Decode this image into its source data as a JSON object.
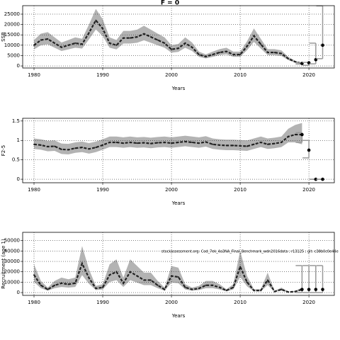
{
  "chart_data": [
    {
      "type": "line",
      "title": "F = 0",
      "xlabel": "Years",
      "ylabel": "SSB",
      "x": [
        1980,
        1981,
        1982,
        1983,
        1984,
        1985,
        1986,
        1987,
        1988,
        1989,
        1990,
        1991,
        1992,
        1993,
        1994,
        1995,
        1996,
        1997,
        1998,
        1999,
        2000,
        2001,
        2002,
        2003,
        2004,
        2005,
        2006,
        2007,
        2008,
        2009,
        2010,
        2011,
        2012,
        2013,
        2014,
        2015,
        2016,
        2017,
        2018,
        2019
      ],
      "values": [
        10000,
        12500,
        13000,
        11000,
        9000,
        10000,
        11000,
        10500,
        16000,
        22000,
        18000,
        11000,
        10000,
        13500,
        13500,
        14000,
        15500,
        14000,
        12500,
        11000,
        8000,
        8500,
        11000,
        9000,
        5500,
        4500,
        5500,
        6500,
        7000,
        5500,
        5500,
        9500,
        14500,
        10500,
        6500,
        6500,
        6000,
        3500,
        2000,
        1200
      ],
      "lower": [
        8000,
        10000,
        10400,
        8800,
        7200,
        8000,
        8800,
        8400,
        12800,
        17600,
        14400,
        8800,
        8000,
        10800,
        10800,
        11200,
        12400,
        11200,
        10000,
        8800,
        6400,
        6800,
        8800,
        7200,
        4400,
        3600,
        4400,
        5200,
        5600,
        4400,
        4400,
        7600,
        11600,
        8400,
        5200,
        5200,
        4800,
        2800,
        1600,
        900
      ],
      "upper": [
        12500,
        15600,
        16300,
        13800,
        11300,
        12500,
        13800,
        13100,
        20000,
        27500,
        22500,
        13800,
        12500,
        16900,
        16900,
        17500,
        19400,
        17500,
        15600,
        13800,
        10000,
        10600,
        13800,
        11300,
        6900,
        5600,
        6900,
        8100,
        8800,
        6900,
        6900,
        11900,
        18100,
        13100,
        8100,
        8100,
        7500,
        4400,
        2500,
        1500
      ],
      "color": "#222222",
      "band_color": "#b3b3b3",
      "points": {
        "x": [
          2019,
          2020,
          2021,
          2022
        ],
        "values": [
          1200,
          1500,
          3000,
          10000
        ],
        "lower": [
          900,
          300,
          1000,
          3500
        ],
        "upper": [
          1500,
          1700,
          11000,
          29000
        ],
        "color": "#999999"
      },
      "xlim": [
        1978.35,
        2023.7
      ],
      "ylim": [
        -1000,
        29100
      ],
      "xticks": [
        1980,
        1990,
        2000,
        2010,
        2020
      ],
      "yticks": [
        0,
        5000,
        10000,
        15000,
        20000,
        25000
      ],
      "grid": true
    },
    {
      "type": "line",
      "xlabel": "Years",
      "ylabel": "F2-5",
      "x": [
        1980,
        1981,
        1982,
        1983,
        1984,
        1985,
        1986,
        1987,
        1988,
        1989,
        1990,
        1991,
        1992,
        1993,
        1994,
        1995,
        1996,
        1997,
        1998,
        1999,
        2000,
        2001,
        2002,
        2003,
        2004,
        2005,
        2006,
        2007,
        2008,
        2009,
        2010,
        2011,
        2012,
        2013,
        2014,
        2015,
        2016,
        2017,
        2018,
        2019
      ],
      "values": [
        0.9,
        0.88,
        0.84,
        0.85,
        0.77,
        0.76,
        0.8,
        0.82,
        0.78,
        0.82,
        0.88,
        0.95,
        0.95,
        0.93,
        0.95,
        0.93,
        0.94,
        0.92,
        0.94,
        0.95,
        0.93,
        0.95,
        0.97,
        0.95,
        0.93,
        0.96,
        0.9,
        0.88,
        0.87,
        0.87,
        0.86,
        0.85,
        0.9,
        0.95,
        0.9,
        0.92,
        0.95,
        1.1,
        1.15,
        1.15
      ],
      "lower": [
        0.78,
        0.76,
        0.72,
        0.73,
        0.65,
        0.64,
        0.68,
        0.7,
        0.66,
        0.7,
        0.76,
        0.83,
        0.83,
        0.81,
        0.83,
        0.81,
        0.82,
        0.8,
        0.82,
        0.83,
        0.81,
        0.83,
        0.85,
        0.83,
        0.81,
        0.84,
        0.78,
        0.76,
        0.75,
        0.75,
        0.74,
        0.73,
        0.78,
        0.83,
        0.78,
        0.8,
        0.83,
        0.95,
        0.95,
        0.9
      ],
      "upper": [
        1.05,
        1.03,
        0.99,
        1.0,
        0.92,
        0.91,
        0.95,
        0.97,
        0.93,
        0.97,
        1.03,
        1.1,
        1.1,
        1.08,
        1.1,
        1.08,
        1.09,
        1.07,
        1.09,
        1.1,
        1.08,
        1.1,
        1.12,
        1.1,
        1.08,
        1.11,
        1.05,
        1.03,
        1.02,
        1.02,
        1.01,
        1.0,
        1.05,
        1.1,
        1.05,
        1.07,
        1.1,
        1.3,
        1.4,
        1.45
      ],
      "color": "#222222",
      "band_color": "#b3b3b3",
      "points": {
        "x": [
          2019,
          2020,
          2021,
          2022
        ],
        "values": [
          1.15,
          0.75,
          0,
          0
        ],
        "lower": [
          0.95,
          0.55,
          0,
          0
        ],
        "upper": [
          1.2,
          1.0,
          0,
          0
        ],
        "color": "#999999"
      },
      "xlim": [
        1978.35,
        2023.7
      ],
      "ylim": [
        -0.09,
        1.57
      ],
      "xticks": [
        1980,
        1990,
        2000,
        2010,
        2020
      ],
      "yticks": [
        0,
        0.5,
        1,
        1.5
      ],
      "grid": true
    },
    {
      "type": "line",
      "xlabel": "Years",
      "ylabel": "Recruitment (age 1)",
      "annotation": "stockassessment.org: Cod_7ek_4a3NA_Final_Benchmark_wdn2016data ; r13125 ; git: c38b0c0e44e",
      "x": [
        1980,
        1981,
        1982,
        1983,
        1984,
        1985,
        1986,
        1987,
        1988,
        1989,
        1990,
        1991,
        1992,
        1993,
        1994,
        1995,
        1996,
        1997,
        1998,
        1999,
        2000,
        2001,
        2002,
        2003,
        2004,
        2005,
        2006,
        2007,
        2008,
        2009,
        2010,
        2011,
        2012,
        2013,
        2014,
        2015,
        2016,
        2017,
        2018,
        2019
      ],
      "values": [
        17000,
        7000,
        3000,
        7000,
        9000,
        8000,
        9000,
        28000,
        14000,
        4000,
        5000,
        17000,
        20000,
        9000,
        20000,
        16000,
        12000,
        12000,
        7000,
        3000,
        16000,
        15000,
        5000,
        3000,
        4000,
        7000,
        7000,
        5000,
        2000,
        5000,
        25000,
        10000,
        2000,
        2000,
        12000,
        1000,
        3000,
        500,
        1000,
        3000
      ],
      "lower": [
        10200,
        4200,
        1800,
        4200,
        5400,
        4800,
        5400,
        16800,
        8400,
        2400,
        3000,
        10200,
        12000,
        5400,
        12000,
        9600,
        7200,
        7200,
        4200,
        1800,
        9600,
        9000,
        3000,
        1800,
        2400,
        4200,
        4200,
        3000,
        1200,
        3000,
        15000,
        6000,
        1200,
        1200,
        7200,
        600,
        1800,
        300,
        600,
        1800
      ],
      "upper": [
        27200,
        11200,
        4800,
        11200,
        14400,
        12800,
        14400,
        44800,
        22400,
        6400,
        8000,
        27200,
        32000,
        14400,
        32000,
        25600,
        19200,
        19200,
        11200,
        4800,
        25600,
        24000,
        8000,
        4800,
        6400,
        11200,
        11200,
        8000,
        3200,
        8000,
        40000,
        16000,
        3200,
        3200,
        19200,
        1600,
        4800,
        800,
        1600,
        4800
      ],
      "color": "#222222",
      "band_color": "#b3b3b3",
      "points": {
        "x": [
          2019,
          2020,
          2021,
          2022
        ],
        "values": [
          3000,
          3000,
          3000,
          3000
        ],
        "lower": [
          0,
          0,
          0,
          0
        ],
        "upper": [
          26000,
          26000,
          26000,
          26000
        ],
        "color": "#999999"
      },
      "xlim": [
        1978.35,
        2023.7
      ],
      "ylim": [
        -2700,
        58000
      ],
      "xticks": [
        1980,
        1990,
        2000,
        2010,
        2020
      ],
      "yticks": [
        0,
        10000,
        20000,
        30000,
        40000,
        50000
      ],
      "grid": true
    }
  ]
}
